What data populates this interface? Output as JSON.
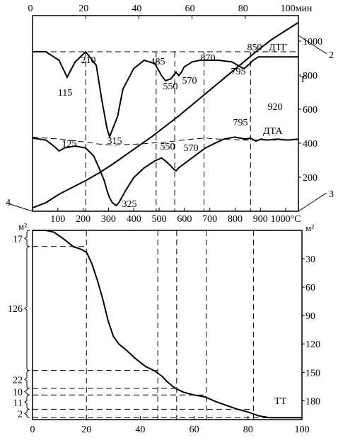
{
  "chart_data": [
    {
      "type": "line",
      "panel": "upper",
      "top_axis": {
        "ticks": [
          "0",
          "20",
          "40",
          "60",
          "80",
          "100"
        ],
        "unit": "мин",
        "range": [
          0,
          100
        ]
      },
      "bottom_axis": {
        "ticks": [
          "100",
          "200",
          "300",
          "400",
          "500",
          "600",
          "700",
          "800",
          "900",
          "1000"
        ],
        "unit": "°C",
        "range": [
          0,
          1050
        ]
      },
      "right_axis": {
        "ticks": [
          "200",
          "400",
          "600",
          "800",
          "1000"
        ],
        "range": [
          0,
          1150
        ]
      },
      "series": [
        {
          "name": "ДТГ",
          "x": [
            0,
            5,
            10,
            13,
            16,
            20,
            24,
            26,
            28,
            29,
            32,
            34,
            38,
            42,
            46,
            48.5,
            50,
            52,
            54,
            55,
            56,
            57,
            60,
            63,
            66,
            70,
            75,
            79.5,
            81,
            83,
            85,
            88,
            92,
            96,
            100
          ],
          "y_norm": [
            0.0,
            0.0,
            0.05,
            0.15,
            0.06,
            0.0,
            0.08,
            0.28,
            0.45,
            0.5,
            0.38,
            0.22,
            0.1,
            0.05,
            0.07,
            0.14,
            0.17,
            0.16,
            0.12,
            0.14,
            0.12,
            0.09,
            0.06,
            0.05,
            0.05,
            0.05,
            0.06,
            0.1,
            0.08,
            0.05,
            0.03,
            0.03,
            0.03,
            0.03,
            0.03
          ],
          "labels": [
            "115",
            "210",
            "315",
            "485",
            "550",
            "570",
            "870",
            "795",
            "850"
          ]
        },
        {
          "name": "ДТА",
          "x": [
            0,
            5,
            8,
            10,
            12,
            16,
            20,
            23,
            25,
            27,
            28,
            29,
            30,
            31.5,
            32.5,
            35,
            38,
            42,
            46,
            48.5,
            50,
            52,
            53,
            54,
            55,
            57,
            59,
            62,
            65,
            68,
            72,
            76,
            80,
            82,
            84,
            86,
            88,
            92,
            96,
            100
          ],
          "y_norm": [
            0.32,
            0.34,
            0.4,
            0.45,
            0.42,
            0.4,
            0.42,
            0.5,
            0.62,
            0.75,
            0.85,
            0.92,
            0.97,
            1.0,
            0.97,
            0.85,
            0.72,
            0.62,
            0.55,
            0.52,
            0.55,
            0.6,
            0.63,
            0.65,
            0.62,
            0.58,
            0.54,
            0.48,
            0.42,
            0.38,
            0.33,
            0.31,
            0.33,
            0.32,
            0.35,
            0.33,
            0.34,
            0.33,
            0.34,
            0.33
          ],
          "labels": [
            "125",
            "325",
            "550",
            "570",
            "795",
            "920"
          ]
        },
        {
          "name": "T",
          "x": [
            0,
            5,
            10,
            15,
            20,
            25,
            30,
            35,
            40,
            45,
            50,
            55,
            60,
            65,
            70,
            75,
            80,
            85,
            90,
            95,
            100
          ],
          "y": [
            20,
            50,
            100,
            140,
            180,
            225,
            275,
            330,
            385,
            440,
            500,
            560,
            625,
            690,
            755,
            820,
            885,
            950,
            1010,
            1060,
            1110
          ]
        },
        {
          "name": "",
          "style": "dashed",
          "x": [
            0,
            10,
            20,
            25,
            30,
            40,
            50,
            60,
            65,
            70,
            80,
            90,
            100
          ],
          "y_norm": [
            0.31,
            0.33,
            0.36,
            0.38,
            0.39,
            0.38,
            0.36,
            0.33,
            0.32,
            0.33,
            0.34,
            0.34,
            0.34
          ]
        }
      ],
      "markers": {
        "dashed_vertical_at_minutes": [
          20,
          46.5,
          53.5,
          64.5,
          82
        ],
        "dashed_horizontal_label": "850 ДТГ"
      },
      "corner_labels": [
        "2",
        "3",
        "4"
      ]
    },
    {
      "type": "line",
      "panel": "lower",
      "series_name": "ТТ",
      "x_axis": {
        "ticks": [
          "0",
          "20",
          "40",
          "60",
          "80",
          "100"
        ],
        "range": [
          0,
          100
        ]
      },
      "right_axis": {
        "unit": "м²",
        "ticks": [
          "30",
          "60",
          "90",
          "120",
          "150",
          "180"
        ],
        "range": [
          0,
          200
        ]
      },
      "left_axis": {
        "unit": "м²",
        "brackets": [
          "17",
          "126",
          "22",
          "10",
          "11",
          "2"
        ]
      },
      "x": [
        0,
        5,
        8,
        12,
        15,
        18,
        20,
        22,
        24,
        26,
        28,
        30,
        32,
        35,
        38,
        42,
        45,
        48,
        50,
        53,
        56,
        60,
        64,
        68,
        72,
        76,
        80,
        84,
        88,
        92,
        96,
        100
      ],
      "y": [
        0,
        0,
        2,
        10,
        17,
        20,
        23,
        35,
        52,
        72,
        95,
        112,
        120,
        127,
        135,
        144,
        148,
        154,
        160,
        167,
        171,
        174,
        176,
        181,
        185,
        189,
        192,
        196,
        198,
        198,
        198,
        198
      ],
      "guide_levels": [
        17,
        148,
        167,
        174,
        189,
        198
      ],
      "guide_x": [
        20,
        46.5,
        53.5,
        64.5,
        82
      ]
    }
  ]
}
